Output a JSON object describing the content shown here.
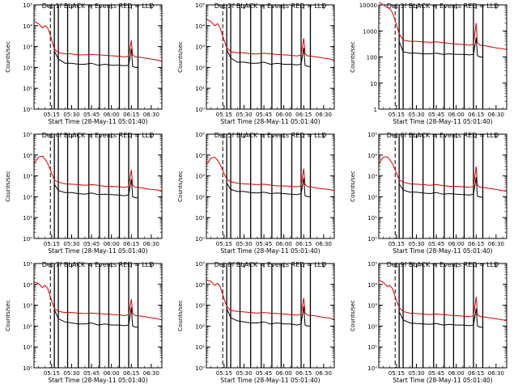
{
  "figure": {
    "xlabel": "Start Time (28-May-11 05:01:40)",
    "ylabel": "Counts/sec",
    "x_tick_labels": [
      "05:15",
      "05:30",
      "05:45",
      "06:00",
      "06:15",
      "06:30"
    ],
    "x_tick_minutes": [
      15,
      30,
      45,
      60,
      75,
      90
    ],
    "x_range_minutes": [
      1.67,
      98
    ],
    "colors": {
      "black_series": "#000000",
      "red_series": "#d40000",
      "axes": "#000000"
    }
  },
  "chart_data": [
    {
      "type": "line",
      "title": "Det 1f BLACK = Events RED = LLD",
      "ylim_log10": [
        0,
        5
      ],
      "y_tick_labels": [
        "10⁰",
        "10¹",
        "10²",
        "10³",
        "10⁴",
        "10⁵"
      ],
      "y_tick_values_log10": [
        0,
        1,
        2,
        3,
        4,
        5
      ],
      "x_minutes": [
        2,
        5,
        8,
        10,
        12,
        14,
        17,
        20,
        25,
        30,
        35,
        40,
        45,
        50,
        55,
        60,
        65,
        70,
        73,
        75,
        76,
        78,
        80,
        85,
        90,
        95,
        98
      ],
      "series": [
        {
          "color": "#d40000",
          "log10": [
            4.2,
            4.1,
            3.9,
            4.0,
            3.9,
            3.55,
            2.9,
            2.7,
            2.65,
            2.65,
            2.6,
            2.6,
            2.62,
            2.6,
            2.58,
            2.56,
            2.54,
            2.5,
            2.55,
            3.3,
            2.6,
            2.5,
            2.5,
            2.45,
            2.4,
            2.35,
            2.3
          ]
        },
        {
          "color": "#000000",
          "log10": [
            null,
            null,
            null,
            null,
            null,
            null,
            2.8,
            2.4,
            2.2,
            2.2,
            2.15,
            2.15,
            2.2,
            2.1,
            2.15,
            2.1,
            2.1,
            2.08,
            2.1,
            2.9,
            2.05,
            2.0,
            2.0,
            null,
            null,
            null,
            null
          ]
        }
      ],
      "vertical_lines_minutes": [
        17,
        20,
        27,
        35,
        43,
        51,
        58,
        66,
        73,
        80
      ],
      "dashed_line_minutes": 14
    },
    {
      "type": "line",
      "title": "Det 2f BLACK = Events RED = LLD",
      "ylim_log10": [
        0,
        5
      ],
      "y_tick_labels": [
        "10⁰",
        "10¹",
        "10²",
        "10³",
        "10⁴",
        "10⁵"
      ],
      "y_tick_values_log10": [
        0,
        1,
        2,
        3,
        4,
        5
      ],
      "x_minutes": [
        2,
        5,
        8,
        10,
        12,
        14,
        17,
        20,
        25,
        30,
        35,
        40,
        45,
        50,
        55,
        60,
        65,
        70,
        73,
        75,
        76,
        78,
        80,
        85,
        90,
        95,
        98
      ],
      "series": [
        {
          "color": "#d40000",
          "log10": [
            4.3,
            4.2,
            4.0,
            4.1,
            3.9,
            3.5,
            2.95,
            2.75,
            2.7,
            2.7,
            2.65,
            2.65,
            2.68,
            2.65,
            2.62,
            2.6,
            2.58,
            2.55,
            2.6,
            3.4,
            2.65,
            2.55,
            2.55,
            2.5,
            2.45,
            2.4,
            2.35
          ]
        },
        {
          "color": "#000000",
          "log10": [
            null,
            null,
            null,
            null,
            null,
            null,
            2.85,
            2.45,
            2.25,
            2.25,
            2.2,
            2.2,
            2.25,
            2.15,
            2.2,
            2.15,
            2.15,
            2.12,
            2.15,
            2.95,
            2.1,
            2.05,
            2.05,
            null,
            null,
            null,
            null
          ]
        }
      ],
      "vertical_lines_minutes": [
        17,
        20,
        27,
        35,
        43,
        51,
        58,
        66,
        73,
        80
      ],
      "dashed_line_minutes": 14
    },
    {
      "type": "line",
      "title": "Det 3f BLACK = Events RED = LLD",
      "ylim_log10": [
        0,
        4
      ],
      "y_tick_labels": [
        "1",
        "10",
        "100",
        "1000",
        "10000"
      ],
      "y_tick_values_log10": [
        0,
        1,
        2,
        3,
        4
      ],
      "x_minutes": [
        2,
        5,
        8,
        10,
        12,
        14,
        17,
        20,
        25,
        30,
        35,
        40,
        45,
        50,
        55,
        60,
        65,
        70,
        73,
        75,
        76,
        78,
        80,
        85,
        90,
        95,
        98
      ],
      "series": [
        {
          "color": "#d40000",
          "log10": [
            4.1,
            4.0,
            3.9,
            3.85,
            3.7,
            3.4,
            2.9,
            2.65,
            2.6,
            2.6,
            2.58,
            2.56,
            2.58,
            2.55,
            2.52,
            2.5,
            2.48,
            2.45,
            2.5,
            3.3,
            2.55,
            2.45,
            2.45,
            2.4,
            2.35,
            2.32,
            2.28
          ]
        },
        {
          "color": "#000000",
          "log10": [
            null,
            null,
            null,
            null,
            null,
            null,
            2.6,
            2.2,
            2.15,
            2.15,
            2.12,
            2.12,
            2.15,
            2.1,
            2.12,
            2.1,
            2.1,
            2.08,
            2.1,
            2.75,
            2.05,
            2.0,
            2.0,
            null,
            null,
            null,
            null
          ]
        }
      ],
      "vertical_lines_minutes": [
        17,
        20,
        27,
        35,
        43,
        51,
        58,
        66,
        73,
        80
      ],
      "dashed_line_minutes": 14
    },
    {
      "type": "line",
      "title": "Det 4f BLACK = Events RED = LLD",
      "ylim_log10": [
        0,
        5
      ],
      "y_tick_labels": [
        "10⁰",
        "10¹",
        "10²",
        "10³",
        "10⁴",
        "10⁵"
      ],
      "y_tick_values_log10": [
        0,
        1,
        2,
        3,
        4,
        5
      ],
      "x_minutes": [
        2,
        5,
        8,
        10,
        12,
        14,
        17,
        20,
        25,
        30,
        35,
        40,
        45,
        50,
        55,
        60,
        65,
        70,
        73,
        75,
        76,
        78,
        80,
        85,
        90,
        95,
        98
      ],
      "series": [
        {
          "color": "#d40000",
          "log10": [
            3.6,
            3.9,
            3.95,
            3.8,
            3.6,
            3.3,
            2.8,
            2.7,
            2.62,
            2.6,
            2.58,
            2.55,
            2.58,
            2.55,
            2.5,
            2.5,
            2.48,
            2.45,
            2.5,
            3.3,
            2.55,
            2.45,
            2.45,
            2.4,
            2.35,
            2.32,
            2.25
          ]
        },
        {
          "color": "#000000",
          "log10": [
            null,
            null,
            null,
            null,
            null,
            null,
            2.6,
            2.3,
            2.2,
            2.2,
            2.15,
            2.12,
            2.18,
            2.1,
            2.12,
            2.1,
            2.08,
            2.05,
            2.1,
            2.85,
            2.0,
            1.95,
            1.95,
            null,
            null,
            null,
            null
          ]
        }
      ],
      "vertical_lines_minutes": [
        17,
        20,
        27,
        35,
        43,
        51,
        58,
        66,
        73,
        80
      ],
      "dashed_line_minutes": 14
    },
    {
      "type": "line",
      "title": "Det 5f BLACK = Events RED = LLD",
      "ylim_log10": [
        0,
        5
      ],
      "y_tick_labels": [
        "10⁰",
        "10¹",
        "10²",
        "10³",
        "10⁴",
        "10⁵"
      ],
      "y_tick_values_log10": [
        0,
        1,
        2,
        3,
        4,
        5
      ],
      "x_minutes": [
        2,
        5,
        8,
        10,
        12,
        14,
        17,
        20,
        25,
        30,
        35,
        40,
        45,
        50,
        55,
        60,
        65,
        70,
        73,
        75,
        76,
        78,
        80,
        85,
        90,
        95,
        98
      ],
      "series": [
        {
          "color": "#d40000",
          "log10": [
            3.55,
            3.85,
            3.9,
            3.75,
            3.55,
            3.25,
            2.85,
            2.72,
            2.65,
            2.62,
            2.6,
            2.58,
            2.6,
            2.56,
            2.52,
            2.52,
            2.5,
            2.48,
            2.52,
            3.35,
            2.58,
            2.48,
            2.48,
            2.42,
            2.38,
            2.34,
            2.3
          ]
        },
        {
          "color": "#000000",
          "log10": [
            null,
            null,
            null,
            null,
            null,
            null,
            2.65,
            2.35,
            2.25,
            2.25,
            2.2,
            2.18,
            2.22,
            2.15,
            2.18,
            2.15,
            2.12,
            2.1,
            2.15,
            2.9,
            2.05,
            2.0,
            2.0,
            null,
            null,
            null,
            null
          ]
        }
      ],
      "vertical_lines_minutes": [
        17,
        20,
        27,
        35,
        43,
        51,
        58,
        66,
        73,
        80
      ],
      "dashed_line_minutes": 14
    },
    {
      "type": "line",
      "title": "Det 6f BLACK = Events RED = LLD",
      "ylim_log10": [
        0,
        5
      ],
      "y_tick_labels": [
        "10⁰",
        "10¹",
        "10²",
        "10³",
        "10⁴",
        "10⁵"
      ],
      "y_tick_values_log10": [
        0,
        1,
        2,
        3,
        4,
        5
      ],
      "x_minutes": [
        2,
        5,
        8,
        10,
        12,
        14,
        17,
        20,
        25,
        30,
        35,
        40,
        45,
        50,
        55,
        60,
        65,
        70,
        73,
        75,
        76,
        78,
        80,
        85,
        90,
        95,
        98
      ],
      "series": [
        {
          "color": "#d40000",
          "log10": [
            3.6,
            3.9,
            3.92,
            3.78,
            3.58,
            3.28,
            2.82,
            2.7,
            2.62,
            2.6,
            2.58,
            2.55,
            2.58,
            2.54,
            2.5,
            2.5,
            2.48,
            2.45,
            2.5,
            3.45,
            2.55,
            2.45,
            2.45,
            2.4,
            2.35,
            2.3,
            2.25
          ]
        },
        {
          "color": "#000000",
          "log10": [
            null,
            null,
            null,
            null,
            null,
            null,
            2.62,
            2.32,
            2.22,
            2.22,
            2.18,
            2.15,
            2.2,
            2.12,
            2.15,
            2.12,
            2.1,
            2.08,
            2.12,
            2.95,
            2.02,
            1.98,
            1.98,
            null,
            null,
            null,
            null
          ]
        }
      ],
      "vertical_lines_minutes": [
        17,
        20,
        27,
        35,
        43,
        51,
        58,
        66,
        73,
        80
      ],
      "dashed_line_minutes": 14
    },
    {
      "type": "line",
      "title": "Det 7f BLACK = Events RED = LLD",
      "ylim_log10": [
        0,
        5
      ],
      "y_tick_labels": [
        "10⁰",
        "10¹",
        "10²",
        "10³",
        "10⁴",
        "10⁵"
      ],
      "y_tick_values_log10": [
        0,
        1,
        2,
        3,
        4,
        5
      ],
      "x_minutes": [
        2,
        5,
        8,
        10,
        12,
        14,
        17,
        20,
        25,
        30,
        35,
        40,
        45,
        50,
        55,
        60,
        65,
        70,
        73,
        75,
        76,
        78,
        80,
        85,
        90,
        95,
        98
      ],
      "series": [
        {
          "color": "#d40000",
          "log10": [
            4.1,
            4.05,
            3.85,
            3.95,
            3.8,
            3.4,
            2.85,
            2.7,
            2.65,
            2.65,
            2.62,
            2.6,
            2.62,
            2.6,
            2.58,
            2.56,
            2.54,
            2.5,
            2.55,
            3.3,
            2.6,
            2.5,
            2.5,
            2.45,
            2.4,
            2.35,
            2.3
          ]
        },
        {
          "color": "#000000",
          "log10": [
            null,
            null,
            null,
            null,
            null,
            null,
            2.8,
            2.35,
            2.2,
            2.15,
            2.1,
            2.1,
            2.15,
            2.05,
            2.1,
            2.05,
            2.05,
            2.02,
            2.05,
            2.9,
            2.0,
            1.95,
            1.95,
            null,
            null,
            null,
            null
          ]
        }
      ],
      "vertical_lines_minutes": [
        17,
        20,
        27,
        35,
        43,
        51,
        58,
        66,
        73,
        80
      ],
      "dashed_line_minutes": 14
    },
    {
      "type": "line",
      "title": "Det 8f BLACK = Events RED = LLD",
      "ylim_log10": [
        0,
        5
      ],
      "y_tick_labels": [
        "10⁰",
        "10¹",
        "10²",
        "10³",
        "10⁴",
        "10⁵"
      ],
      "y_tick_values_log10": [
        0,
        1,
        2,
        3,
        4,
        5
      ],
      "x_minutes": [
        2,
        5,
        8,
        10,
        12,
        14,
        17,
        20,
        25,
        30,
        35,
        40,
        45,
        50,
        55,
        60,
        65,
        70,
        73,
        75,
        76,
        78,
        80,
        85,
        90,
        95,
        98
      ],
      "series": [
        {
          "color": "#d40000",
          "log10": [
            4.2,
            4.15,
            3.95,
            4.05,
            3.9,
            3.5,
            2.95,
            2.75,
            2.7,
            2.68,
            2.65,
            2.62,
            2.65,
            2.62,
            2.6,
            2.58,
            2.55,
            2.52,
            2.58,
            3.35,
            2.62,
            2.52,
            2.52,
            2.48,
            2.42,
            2.38,
            2.32
          ]
        },
        {
          "color": "#000000",
          "log10": [
            null,
            null,
            null,
            null,
            null,
            null,
            2.85,
            2.4,
            2.25,
            2.2,
            2.15,
            2.15,
            2.2,
            2.1,
            2.15,
            2.1,
            2.1,
            2.05,
            2.1,
            2.95,
            2.05,
            2.0,
            2.0,
            null,
            null,
            null,
            null
          ]
        }
      ],
      "vertical_lines_minutes": [
        17,
        20,
        27,
        35,
        43,
        51,
        58,
        66,
        73,
        80
      ],
      "dashed_line_minutes": 14
    },
    {
      "type": "line",
      "title": "Det 9f BLACK = Events RED = LLD",
      "ylim_log10": [
        0,
        5
      ],
      "y_tick_labels": [
        "10⁰",
        "10¹",
        "10²",
        "10³",
        "10⁴",
        "10⁵"
      ],
      "y_tick_values_log10": [
        0,
        1,
        2,
        3,
        4,
        5
      ],
      "x_minutes": [
        2,
        5,
        8,
        10,
        12,
        14,
        17,
        20,
        25,
        30,
        35,
        40,
        45,
        50,
        55,
        60,
        65,
        70,
        73,
        75,
        76,
        78,
        80,
        85,
        90,
        95,
        98
      ],
      "series": [
        {
          "color": "#d40000",
          "log10": [
            4.2,
            4.1,
            3.9,
            3.95,
            3.8,
            3.4,
            2.9,
            2.7,
            2.62,
            2.6,
            2.58,
            2.55,
            2.58,
            2.55,
            2.52,
            2.5,
            2.48,
            2.45,
            2.5,
            3.4,
            2.55,
            2.45,
            2.45,
            2.4,
            2.35,
            2.3,
            2.25
          ]
        },
        {
          "color": "#000000",
          "log10": [
            null,
            null,
            null,
            null,
            null,
            null,
            2.7,
            2.3,
            2.15,
            2.12,
            2.1,
            2.08,
            2.12,
            2.05,
            2.08,
            2.05,
            2.05,
            2.02,
            2.05,
            2.85,
            2.0,
            1.95,
            1.95,
            null,
            null,
            null,
            null
          ]
        }
      ],
      "vertical_lines_minutes": [
        17,
        20,
        27,
        35,
        43,
        51,
        58,
        66,
        73,
        80
      ],
      "dashed_line_minutes": 14
    }
  ]
}
